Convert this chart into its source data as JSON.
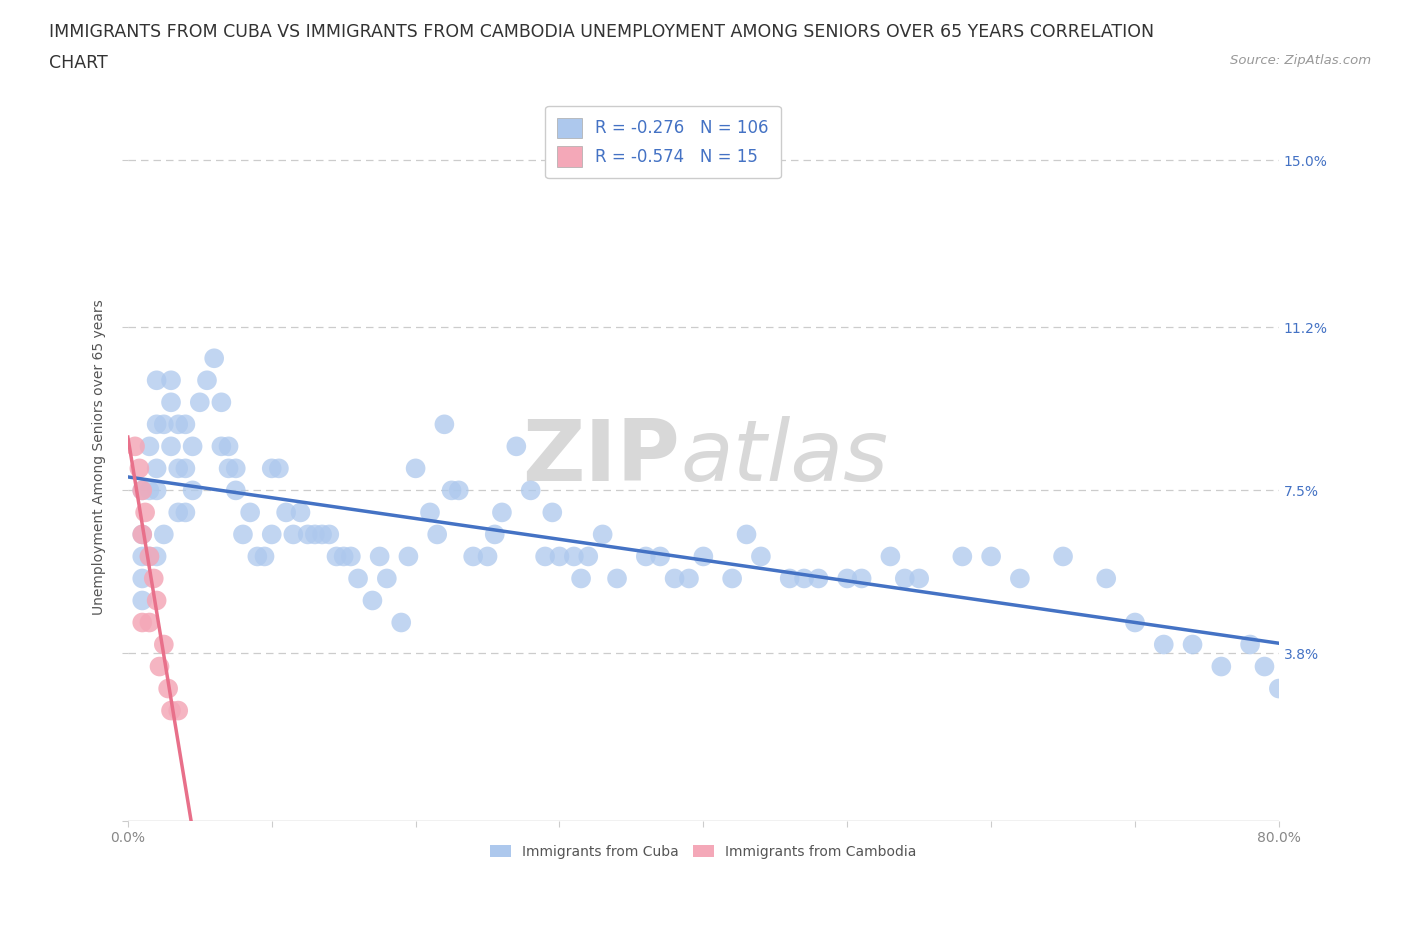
{
  "title_line1": "IMMIGRANTS FROM CUBA VS IMMIGRANTS FROM CAMBODIA UNEMPLOYMENT AMONG SENIORS OVER 65 YEARS CORRELATION",
  "title_line2": "CHART",
  "source": "Source: ZipAtlas.com",
  "ylabel": "Unemployment Among Seniors over 65 years",
  "xmin": 0.0,
  "xmax": 0.8,
  "ymin": 0.0,
  "ymax": 0.165,
  "yticks": [
    0.0,
    0.038,
    0.075,
    0.112,
    0.15
  ],
  "ytick_labels": [
    "",
    "3.8%",
    "7.5%",
    "11.2%",
    "15.0%"
  ],
  "xticks": [
    0.0,
    0.1,
    0.2,
    0.3,
    0.4,
    0.5,
    0.6,
    0.7,
    0.8
  ],
  "xtick_labels_full": [
    "0.0%",
    "",
    "",
    "",
    "",
    "",
    "",
    "",
    "80.0%"
  ],
  "cuba_R": -0.276,
  "cuba_N": 106,
  "cambodia_R": -0.574,
  "cambodia_N": 15,
  "cuba_color": "#adc8ed",
  "cambodia_color": "#f4a8b8",
  "cuba_line_color": "#4472c4",
  "cambodia_line_color": "#e8708a",
  "cuba_scatter_x": [
    0.01,
    0.01,
    0.01,
    0.01,
    0.01,
    0.015,
    0.015,
    0.015,
    0.02,
    0.02,
    0.02,
    0.02,
    0.02,
    0.025,
    0.025,
    0.03,
    0.03,
    0.03,
    0.035,
    0.035,
    0.035,
    0.04,
    0.04,
    0.04,
    0.045,
    0.045,
    0.05,
    0.055,
    0.06,
    0.065,
    0.065,
    0.07,
    0.07,
    0.075,
    0.075,
    0.08,
    0.085,
    0.09,
    0.095,
    0.1,
    0.1,
    0.105,
    0.11,
    0.115,
    0.12,
    0.125,
    0.13,
    0.135,
    0.14,
    0.145,
    0.15,
    0.155,
    0.16,
    0.17,
    0.175,
    0.18,
    0.19,
    0.195,
    0.2,
    0.21,
    0.215,
    0.22,
    0.225,
    0.23,
    0.24,
    0.25,
    0.255,
    0.26,
    0.27,
    0.28,
    0.29,
    0.295,
    0.3,
    0.31,
    0.315,
    0.32,
    0.33,
    0.34,
    0.36,
    0.37,
    0.38,
    0.39,
    0.4,
    0.42,
    0.43,
    0.44,
    0.46,
    0.47,
    0.48,
    0.5,
    0.51,
    0.53,
    0.54,
    0.55,
    0.58,
    0.6,
    0.62,
    0.65,
    0.68,
    0.7,
    0.72,
    0.74,
    0.76,
    0.78,
    0.79,
    0.8
  ],
  "cuba_scatter_y": [
    0.075,
    0.065,
    0.06,
    0.055,
    0.05,
    0.085,
    0.075,
    0.06,
    0.1,
    0.09,
    0.08,
    0.075,
    0.06,
    0.09,
    0.065,
    0.1,
    0.095,
    0.085,
    0.09,
    0.08,
    0.07,
    0.09,
    0.08,
    0.07,
    0.085,
    0.075,
    0.095,
    0.1,
    0.105,
    0.095,
    0.085,
    0.085,
    0.08,
    0.08,
    0.075,
    0.065,
    0.07,
    0.06,
    0.06,
    0.08,
    0.065,
    0.08,
    0.07,
    0.065,
    0.07,
    0.065,
    0.065,
    0.065,
    0.065,
    0.06,
    0.06,
    0.06,
    0.055,
    0.05,
    0.06,
    0.055,
    0.045,
    0.06,
    0.08,
    0.07,
    0.065,
    0.09,
    0.075,
    0.075,
    0.06,
    0.06,
    0.065,
    0.07,
    0.085,
    0.075,
    0.06,
    0.07,
    0.06,
    0.06,
    0.055,
    0.06,
    0.065,
    0.055,
    0.06,
    0.06,
    0.055,
    0.055,
    0.06,
    0.055,
    0.065,
    0.06,
    0.055,
    0.055,
    0.055,
    0.055,
    0.055,
    0.06,
    0.055,
    0.055,
    0.06,
    0.06,
    0.055,
    0.06,
    0.055,
    0.045,
    0.04,
    0.04,
    0.035,
    0.04,
    0.035,
    0.03
  ],
  "cambodia_scatter_x": [
    0.005,
    0.008,
    0.01,
    0.01,
    0.01,
    0.012,
    0.015,
    0.015,
    0.018,
    0.02,
    0.022,
    0.025,
    0.028,
    0.03,
    0.035
  ],
  "cambodia_scatter_y": [
    0.085,
    0.08,
    0.075,
    0.065,
    0.045,
    0.07,
    0.06,
    0.045,
    0.055,
    0.05,
    0.035,
    0.04,
    0.03,
    0.025,
    0.025
  ],
  "background_color": "#ffffff",
  "grid_color": "#cccccc",
  "watermark_zip": "ZIP",
  "watermark_atlas": "atlas",
  "watermark_color": "#d8d8d8",
  "title_fontsize": 12.5,
  "axis_label_fontsize": 10,
  "tick_fontsize": 10,
  "legend_fontsize": 12,
  "right_tick_color": "#4472c4",
  "tick_color": "#888888"
}
